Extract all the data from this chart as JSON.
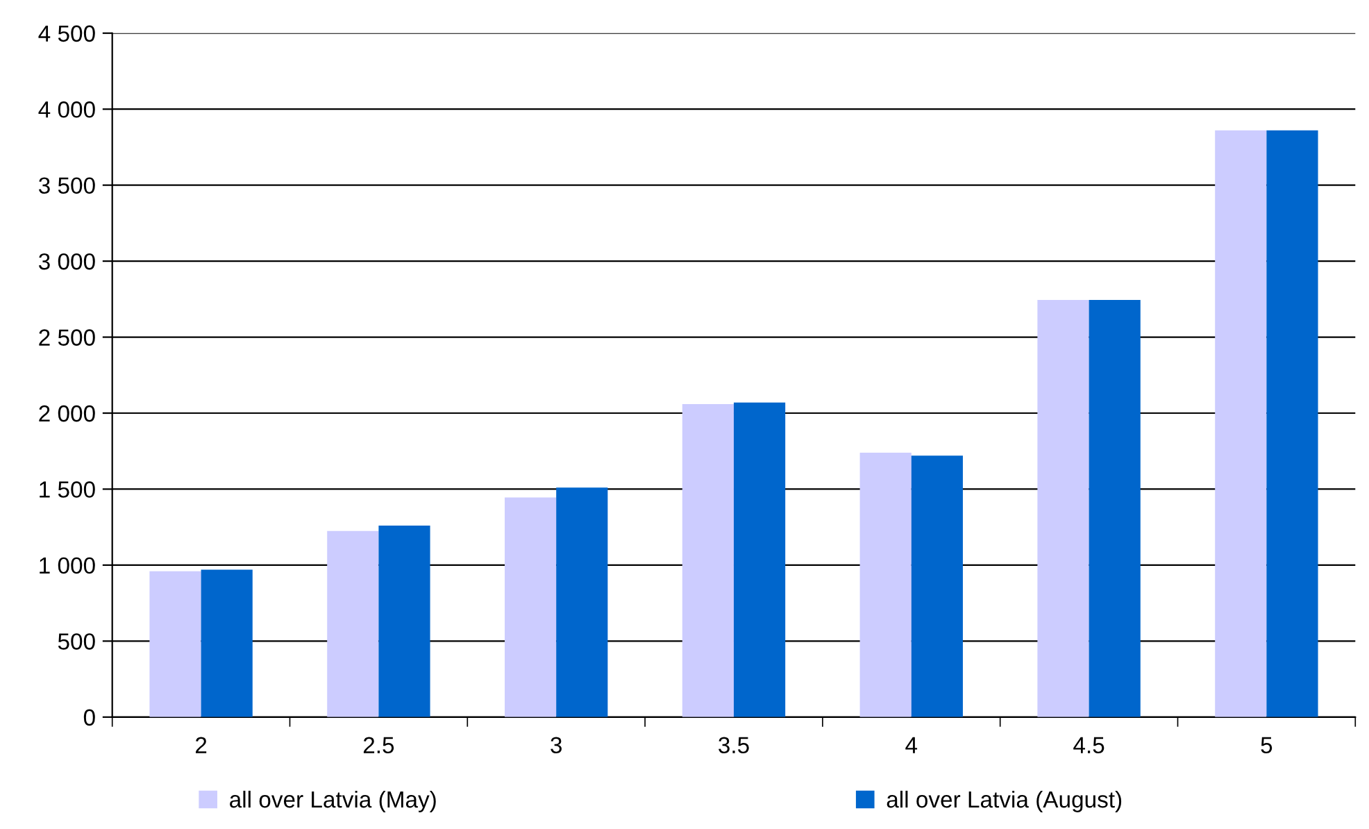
{
  "chart_data": {
    "type": "bar",
    "categories": [
      "2",
      "2.5",
      "3",
      "3.5",
      "4",
      "4.5",
      "5"
    ],
    "series": [
      {
        "name": "all over Latvia (May)",
        "color": "#ccccff",
        "values": [
          960,
          1225,
          1445,
          2060,
          1740,
          2745,
          3860
        ]
      },
      {
        "name": "all over Latvia (August)",
        "color": "#0066cc",
        "values": [
          970,
          1260,
          1510,
          2070,
          1720,
          2745,
          3860
        ]
      }
    ],
    "ylim": [
      0,
      4500
    ],
    "yticks": [
      {
        "value": 0,
        "label": "0"
      },
      {
        "value": 500,
        "label": "500"
      },
      {
        "value": 1000,
        "label": "1 000"
      },
      {
        "value": 1500,
        "label": "1 500"
      },
      {
        "value": 2000,
        "label": "2 000"
      },
      {
        "value": 2500,
        "label": "2 500"
      },
      {
        "value": 3000,
        "label": "3 000"
      },
      {
        "value": 3500,
        "label": "3 500"
      },
      {
        "value": 4000,
        "label": "4 000"
      },
      {
        "value": 4500,
        "label": "4 500"
      }
    ],
    "grid": "y",
    "legend": "bottom"
  }
}
